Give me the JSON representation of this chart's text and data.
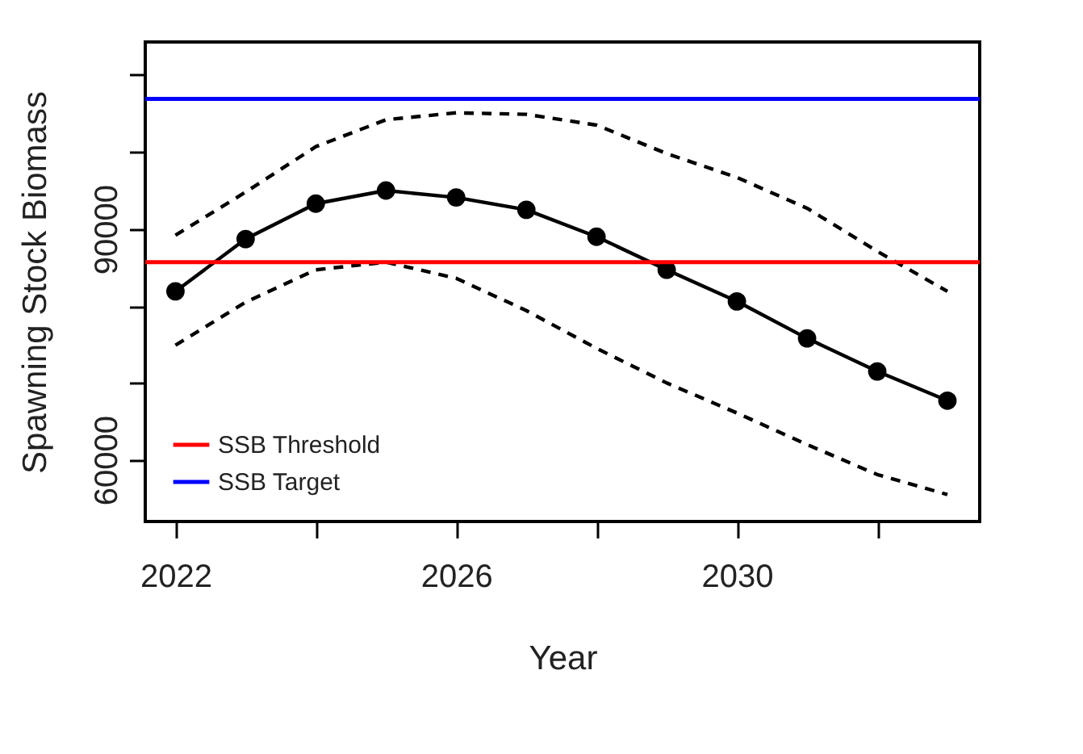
{
  "chart_data": {
    "type": "line",
    "xlabel": "Year",
    "ylabel": "Spawning Stock Biomass",
    "x": [
      2022,
      2023,
      2024,
      2025,
      2026,
      2027,
      2028,
      2029,
      2030,
      2031,
      2032,
      2033
    ],
    "series": [
      {
        "color": "#000000",
        "marker": "circle",
        "line_style": "solid",
        "values": [
          81900,
          88700,
          93300,
          95000,
          94100,
          92500,
          89000,
          84700,
          80600,
          75800,
          71500,
          67700
        ]
      },
      {
        "color": "#000000",
        "marker": "none",
        "line_style": "dashed",
        "values": [
          89200,
          94800,
          100700,
          104200,
          105100,
          104900,
          103500,
          99800,
          96700,
          92700,
          87100,
          81900
        ]
      },
      {
        "color": "#000000",
        "marker": "none",
        "line_style": "dashed",
        "values": [
          74900,
          80500,
          84700,
          85700,
          83600,
          79400,
          74500,
          70000,
          66100,
          62000,
          58100,
          55500
        ]
      }
    ],
    "ref_lines": [
      {
        "axis": "y",
        "value": 85700,
        "label": "SSB Threshold",
        "color": "#ff0000"
      },
      {
        "axis": "y",
        "value": 106900,
        "label": "SSB Target",
        "color": "#0000ff"
      }
    ],
    "xlim": [
      2021.57,
      2033.46
    ],
    "xticks": [
      2022,
      {
        "value": 2024,
        "label": null
      },
      2026,
      {
        "value": 2028,
        "label": null
      },
      2030,
      {
        "value": 2032,
        "label": null
      }
    ],
    "ylim": [
      52000,
      114300
    ],
    "yticks": [
      60000,
      {
        "value": 70000,
        "label": null
      },
      {
        "value": 80000,
        "label": null
      },
      90000,
      {
        "value": 100000,
        "label": null
      },
      {
        "value": 110000,
        "label": null
      }
    ],
    "grid": false,
    "legend": "bottom left"
  }
}
